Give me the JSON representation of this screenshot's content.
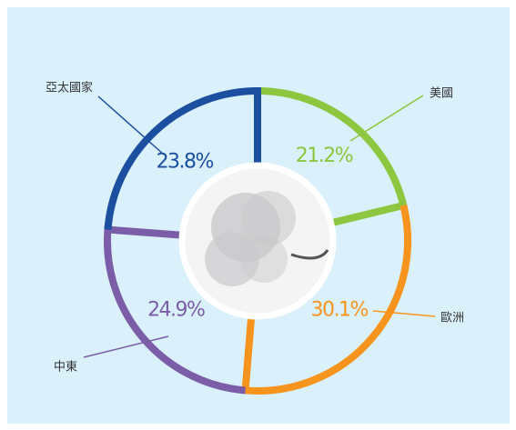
{
  "chart_data": {
    "type": "donut",
    "categories": [
      "美國",
      "歐洲",
      "中東",
      "亞太國家"
    ],
    "values": [
      21.2,
      30.1,
      24.9,
      23.8
    ],
    "value_labels": [
      "21.2%",
      "30.1%",
      "24.9%",
      "23.8%"
    ],
    "colors": [
      "#8dc63f",
      "#f7941d",
      "#7b5ea7",
      "#1c4fa0"
    ]
  }
}
